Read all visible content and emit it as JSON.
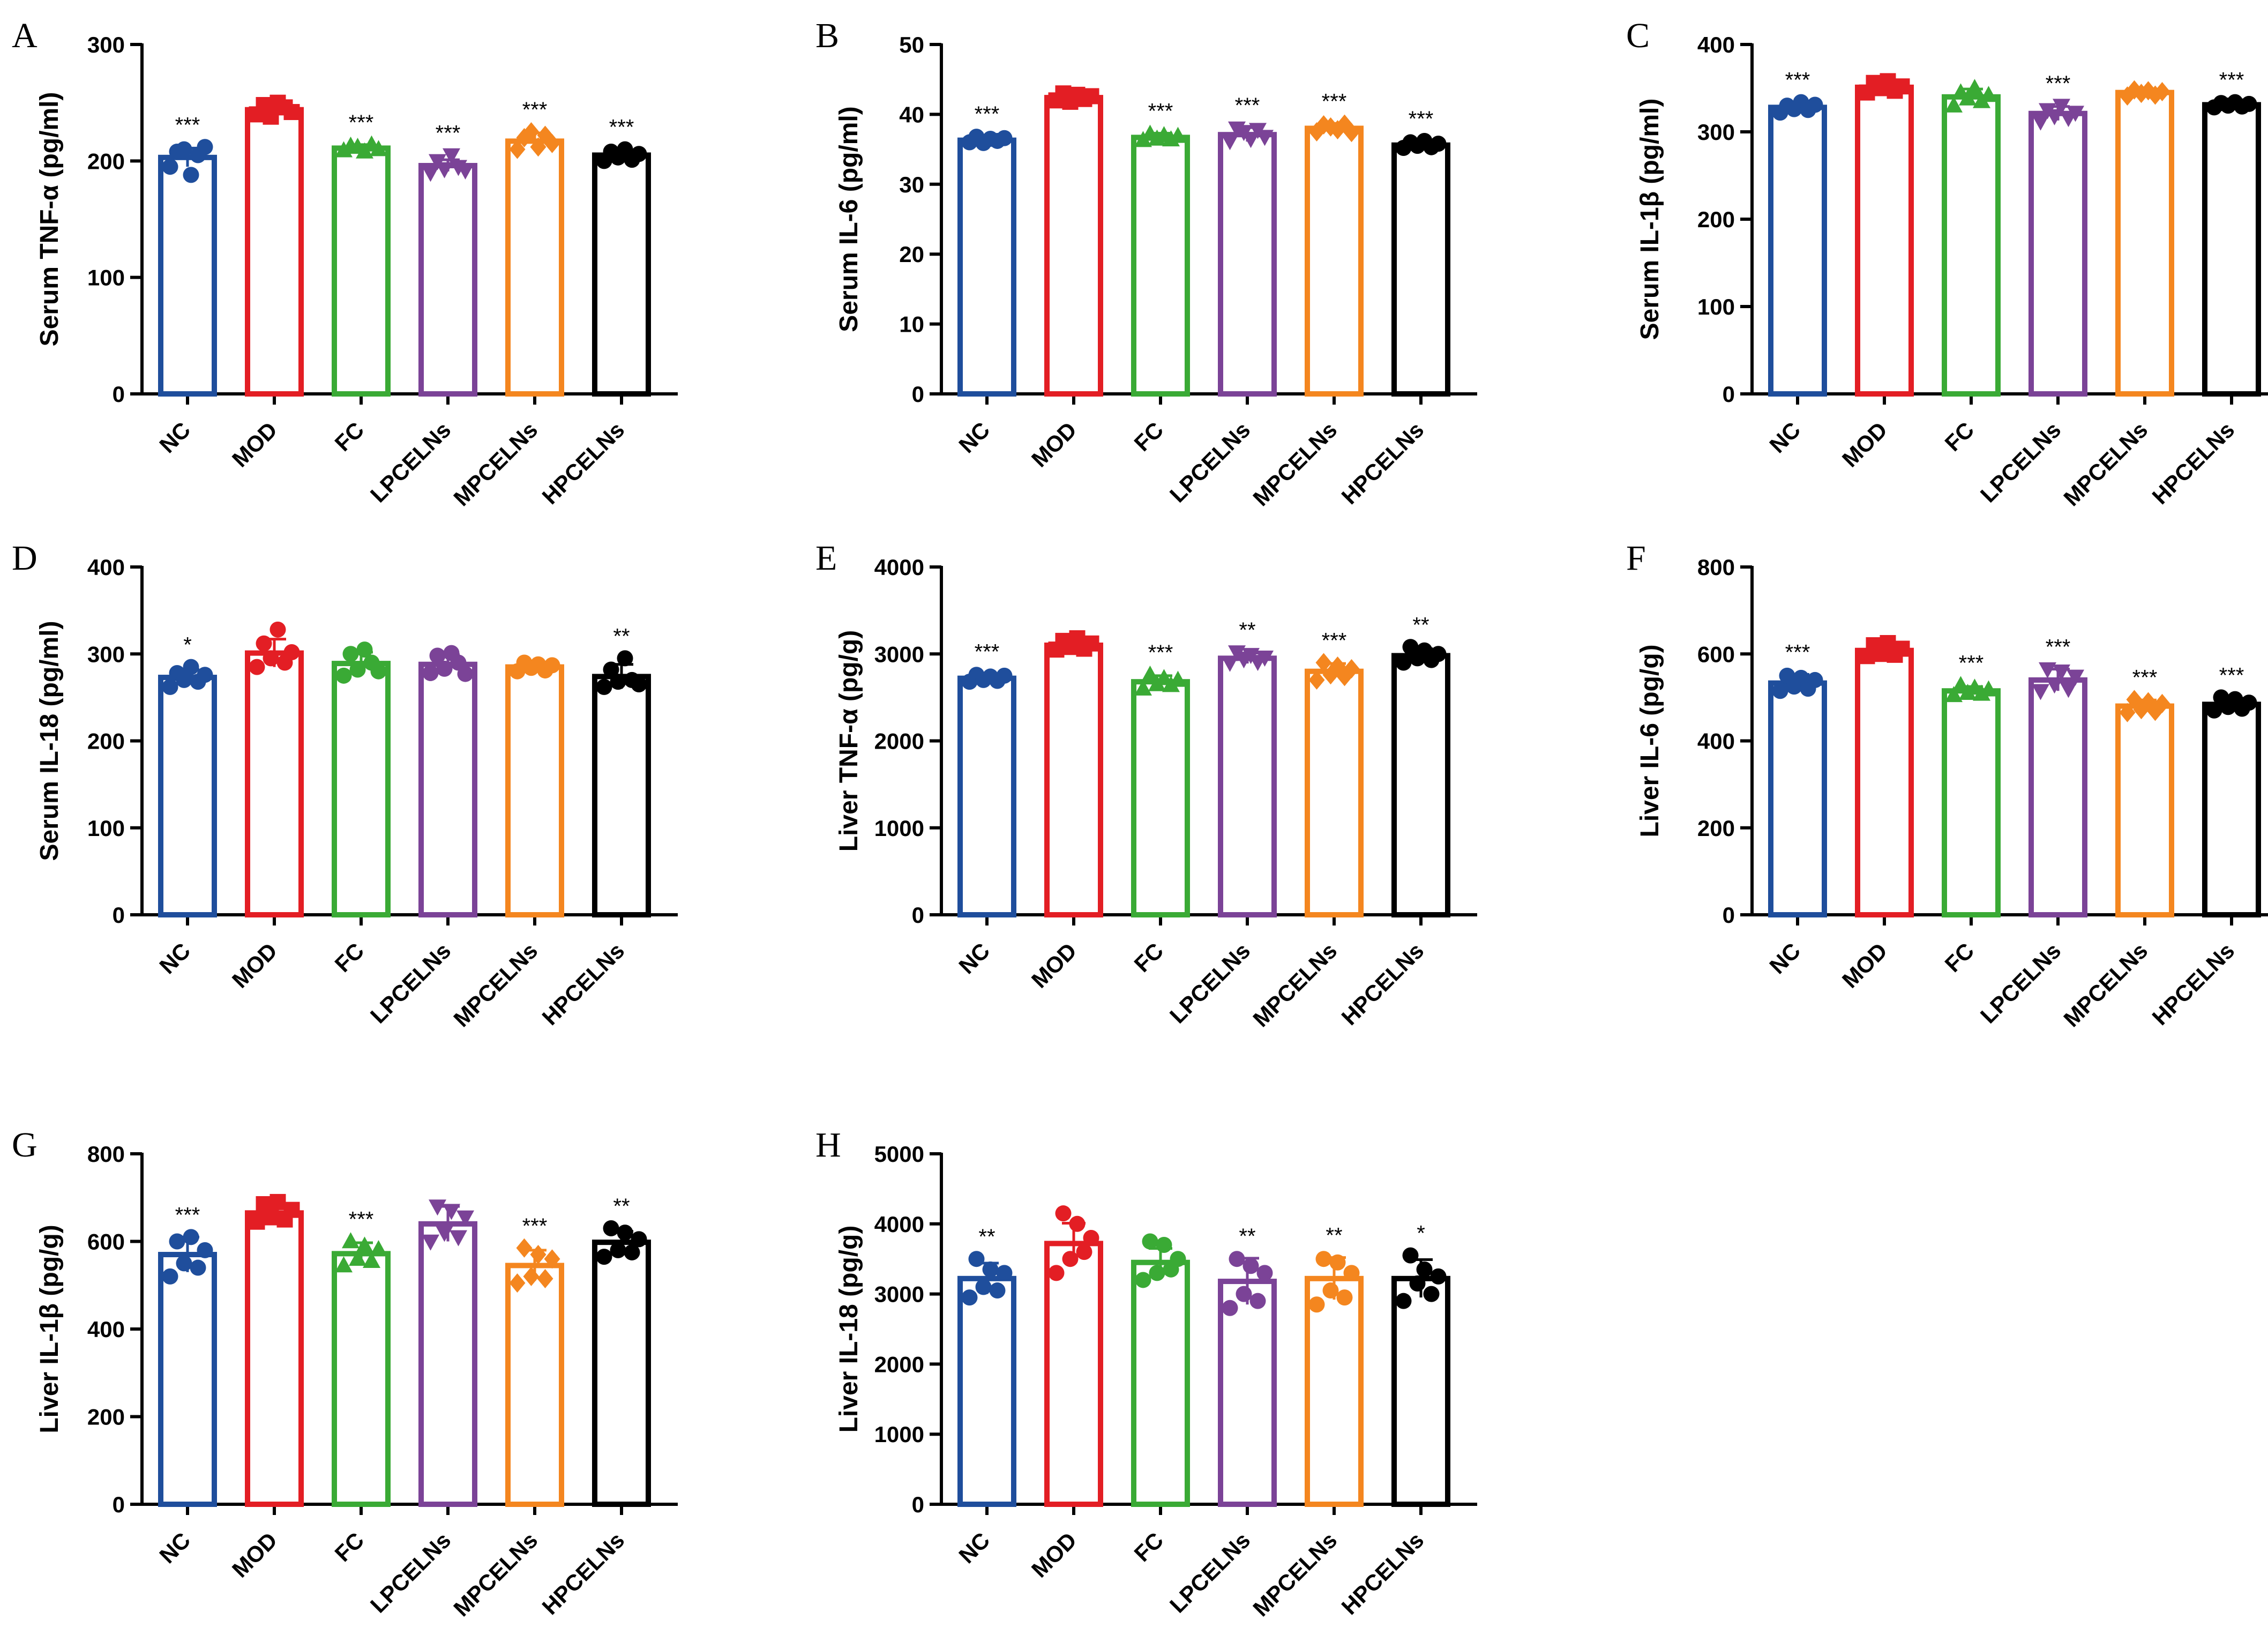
{
  "colors": {
    "NC": "#1f4e9c",
    "MOD": "#e31e24",
    "FC": "#3aaa35",
    "LPCELNs": "#7b4397",
    "MPCELNs": "#f4861f",
    "HPCELNs": "#000000"
  },
  "chart_data": [
    {
      "type": "bar",
      "panel": "A",
      "ylabel": "Serum TNF-α (pg/ml)",
      "ylim": [
        0,
        300
      ],
      "yticks": [
        0,
        100,
        200,
        300
      ],
      "tick_labels": [
        "0",
        "100",
        "200",
        "300"
      ],
      "categories": [
        "NC",
        "MOD",
        "FC",
        "LPCELNs",
        "MPCELNs",
        "HPCELNs"
      ],
      "values": [
        203,
        244,
        211,
        196,
        217,
        205
      ],
      "errors": [
        8,
        5,
        3,
        5,
        7,
        4
      ],
      "points": [
        [
          195,
          208,
          210,
          188,
          205,
          212
        ],
        [
          240,
          248,
          238,
          250,
          246,
          242
        ],
        [
          209,
          213,
          212,
          208,
          214,
          210
        ],
        [
          190,
          200,
          193,
          205,
          195,
          192
        ],
        [
          210,
          220,
          225,
          212,
          222,
          215
        ],
        [
          200,
          208,
          203,
          210,
          201,
          206
        ]
      ],
      "markers": [
        "circle",
        "square",
        "triangle",
        "triangle-down",
        "diamond",
        "circle"
      ],
      "significance": [
        "***",
        "",
        "***",
        "***",
        "***",
        "***"
      ]
    },
    {
      "type": "bar",
      "panel": "B",
      "ylabel": "Serum IL-6 (pg/ml)",
      "ylim": [
        0,
        50
      ],
      "yticks": [
        0,
        10,
        20,
        30,
        40,
        50
      ],
      "tick_labels": [
        "0",
        "10",
        "20",
        "30",
        "40",
        "50"
      ],
      "categories": [
        "NC",
        "MOD",
        "FC",
        "LPCELNs",
        "MPCELNs",
        "HPCELNs"
      ],
      "values": [
        36.3,
        42.4,
        36.7,
        37.1,
        38.0,
        35.6
      ],
      "errors": [
        0.6,
        0.7,
        0.6,
        1.0,
        0.7,
        0.6
      ],
      "points": [
        [
          36.0,
          36.8,
          35.9,
          36.5,
          36.2,
          36.6
        ],
        [
          42.0,
          43.0,
          41.8,
          42.8,
          42.2,
          42.6
        ],
        [
          36.3,
          37.2,
          36.5,
          37.0,
          36.4,
          36.9
        ],
        [
          36.2,
          38.0,
          37.5,
          36.5,
          37.8,
          36.8
        ],
        [
          37.5,
          38.5,
          38.2,
          37.8,
          38.6,
          37.4
        ],
        [
          35.2,
          36.0,
          35.5,
          36.2,
          35.3,
          35.8
        ]
      ],
      "markers": [
        "circle",
        "square",
        "triangle",
        "triangle-down",
        "diamond",
        "circle"
      ],
      "significance": [
        "***",
        "",
        "***",
        "***",
        "***",
        "***"
      ]
    },
    {
      "type": "bar",
      "panel": "C",
      "ylabel": "Serum IL-1β (pg/ml)",
      "ylim": [
        0,
        400
      ],
      "yticks": [
        0,
        100,
        200,
        300,
        400
      ],
      "tick_labels": [
        "0",
        "100",
        "200",
        "300",
        "400"
      ],
      "categories": [
        "NC",
        "MOD",
        "FC",
        "LPCELNs",
        "MPCELNs",
        "HPCELNs"
      ],
      "values": [
        328,
        351,
        340,
        321,
        345,
        331
      ],
      "errors": [
        5,
        7,
        9,
        8,
        4,
        3
      ],
      "points": [
        [
          322,
          330,
          326,
          334,
          325,
          331
        ],
        [
          345,
          356,
          350,
          358,
          347,
          352
        ],
        [
          330,
          345,
          338,
          350,
          335,
          342
        ],
        [
          312,
          325,
          318,
          330,
          316,
          322
        ],
        [
          341,
          348,
          344,
          347,
          342,
          346
        ],
        [
          328,
          333,
          330,
          334,
          329,
          332
        ]
      ],
      "markers": [
        "circle",
        "square",
        "triangle",
        "triangle-down",
        "diamond",
        "circle"
      ],
      "significance": [
        "***",
        "",
        "",
        "***",
        "",
        "***"
      ]
    },
    {
      "type": "bar",
      "panel": "D",
      "ylabel": "Serum IL-18 (pg/ml)",
      "ylim": [
        0,
        400
      ],
      "yticks": [
        0,
        100,
        200,
        300,
        400
      ],
      "tick_labels": [
        "0",
        "100",
        "200",
        "300",
        "400"
      ],
      "categories": [
        "NC",
        "MOD",
        "FC",
        "LPCELNs",
        "MPCELNs",
        "HPCELNs"
      ],
      "values": [
        273,
        301,
        289,
        288,
        285,
        274
      ],
      "errors": [
        9,
        16,
        13,
        11,
        5,
        14
      ],
      "points": [
        [
          262,
          278,
          270,
          285,
          268,
          276
        ],
        [
          285,
          312,
          295,
          328,
          290,
          302
        ],
        [
          275,
          300,
          282,
          305,
          290,
          280
        ],
        [
          278,
          298,
          283,
          301,
          290,
          277
        ],
        [
          280,
          290,
          284,
          288,
          281,
          287
        ],
        [
          262,
          282,
          268,
          295,
          270,
          265
        ]
      ],
      "markers": [
        "circle",
        "circle",
        "circle",
        "circle",
        "circle",
        "circle"
      ],
      "significance": [
        "*",
        "",
        "",
        "",
        "",
        "**"
      ]
    },
    {
      "type": "bar",
      "panel": "E",
      "ylabel": "Liver TNF-α (pg/g)",
      "ylim": [
        0,
        4000
      ],
      "yticks": [
        0,
        1000,
        2000,
        3000,
        4000
      ],
      "tick_labels": [
        "0",
        "1000",
        "2000",
        "3000",
        "4000"
      ],
      "categories": [
        "NC",
        "MOD",
        "FC",
        "LPCELNs",
        "MPCELNs",
        "HPCELNs"
      ],
      "values": [
        2720,
        3100,
        2680,
        2950,
        2800,
        2980
      ],
      "errors": [
        50,
        60,
        70,
        60,
        90,
        80
      ],
      "points": [
        [
          2680,
          2760,
          2700,
          2740,
          2690,
          2750
        ],
        [
          3050,
          3150,
          3080,
          3180,
          3060,
          3120
        ],
        [
          2600,
          2760,
          2650,
          2720,
          2640,
          2700
        ],
        [
          2900,
          3020,
          2940,
          2990,
          2910,
          2960
        ],
        [
          2700,
          2900,
          2760,
          2860,
          2740,
          2830
        ],
        [
          2900,
          3080,
          2950,
          3040,
          2930,
          3000
        ]
      ],
      "markers": [
        "circle",
        "square",
        "triangle",
        "triangle-down",
        "diamond",
        "circle"
      ],
      "significance": [
        "***",
        "",
        "***",
        "**",
        "***",
        "**"
      ]
    },
    {
      "type": "bar",
      "panel": "F",
      "ylabel": "Liver IL-6 (pg/g)",
      "ylim": [
        0,
        800
      ],
      "yticks": [
        0,
        200,
        400,
        600,
        800
      ],
      "tick_labels": [
        "0",
        "200",
        "400",
        "600",
        "800"
      ],
      "categories": [
        "NC",
        "MOD",
        "FC",
        "LPCELNs",
        "MPCELNs",
        "HPCELNs"
      ],
      "values": [
        533,
        608,
        515,
        540,
        480,
        484
      ],
      "errors": [
        20,
        12,
        10,
        25,
        14,
        14
      ],
      "points": [
        [
          515,
          550,
          525,
          545,
          520,
          540
        ],
        [
          595,
          620,
          600,
          625,
          598,
          612
        ],
        [
          505,
          528,
          510,
          522,
          508,
          518
        ],
        [
          515,
          565,
          530,
          560,
          520,
          548
        ],
        [
          465,
          495,
          472,
          490,
          468,
          486
        ],
        [
          470,
          500,
          478,
          496,
          474,
          488
        ]
      ],
      "markers": [
        "circle",
        "square",
        "triangle",
        "triangle-down",
        "diamond",
        "circle"
      ],
      "significance": [
        "***",
        "",
        "***",
        "***",
        "***",
        "***"
      ]
    },
    {
      "type": "bar",
      "panel": "G",
      "ylabel": "Liver IL-1β (pg/g)",
      "ylim": [
        0,
        800
      ],
      "yticks": [
        0,
        200,
        400,
        600,
        800
      ],
      "tick_labels": [
        "0",
        "200",
        "400",
        "600",
        "800"
      ],
      "categories": [
        "NC",
        "MOD",
        "FC",
        "LPCELNs",
        "MPCELNs",
        "HPCELNs"
      ],
      "values": [
        570,
        665,
        572,
        640,
        545,
        598
      ],
      "errors": [
        40,
        20,
        25,
        40,
        35,
        25
      ],
      "points": [
        [
          520,
          600,
          550,
          610,
          540,
          580
        ],
        [
          645,
          685,
          655,
          690,
          650,
          672
        ],
        [
          545,
          600,
          560,
          590,
          555,
          582
        ],
        [
          600,
          680,
          620,
          670,
          610,
          655
        ],
        [
          505,
          585,
          520,
          570,
          515,
          560
        ],
        [
          565,
          630,
          580,
          620,
          575,
          605
        ]
      ],
      "markers": [
        "circle",
        "square",
        "triangle",
        "triangle-down",
        "diamond",
        "circle"
      ],
      "significance": [
        "***",
        "",
        "***",
        "",
        "***",
        "**"
      ]
    },
    {
      "type": "bar",
      "panel": "H",
      "ylabel": "Liver IL-18 (pg/g)",
      "ylim": [
        0,
        5000
      ],
      "yticks": [
        0,
        1000,
        2000,
        3000,
        4000,
        5000
      ],
      "tick_labels": [
        "0",
        "1000",
        "2000",
        "3000",
        "4000",
        "5000"
      ],
      "categories": [
        "NC",
        "MOD",
        "FC",
        "LPCELNs",
        "MPCELNs",
        "HPCELNs"
      ],
      "values": [
        3220,
        3720,
        3450,
        3180,
        3220,
        3220
      ],
      "errors": [
        220,
        290,
        200,
        330,
        300,
        270
      ],
      "points": [
        [
          2950,
          3500,
          3100,
          3350,
          3050,
          3300
        ],
        [
          3300,
          4150,
          3500,
          4000,
          3600,
          3800
        ],
        [
          3200,
          3750,
          3300,
          3700,
          3350,
          3500
        ],
        [
          2800,
          3500,
          3000,
          3400,
          2900,
          3300
        ],
        [
          2850,
          3500,
          3050,
          3450,
          2950,
          3300
        ],
        [
          2900,
          3550,
          3150,
          3350,
          3000,
          3250
        ]
      ],
      "markers": [
        "circle",
        "circle",
        "circle",
        "circle",
        "circle",
        "circle"
      ],
      "significance": [
        "**",
        "",
        "",
        "**",
        "**",
        "*"
      ]
    }
  ]
}
